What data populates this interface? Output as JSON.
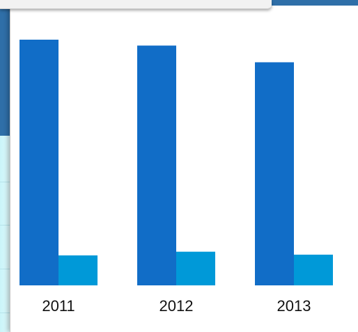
{
  "chart_data": {
    "type": "bar",
    "categories": [
      "2011",
      "2012",
      "2013"
    ],
    "series": [
      {
        "color": "#116dc7",
        "values": [
          100,
          97.6,
          90.8
        ]
      },
      {
        "color": "#0099d8",
        "values": [
          12.2,
          13.7,
          12.5
        ]
      }
    ],
    "ylim": [
      0,
      100
    ],
    "grid": false,
    "legend": "none"
  }
}
